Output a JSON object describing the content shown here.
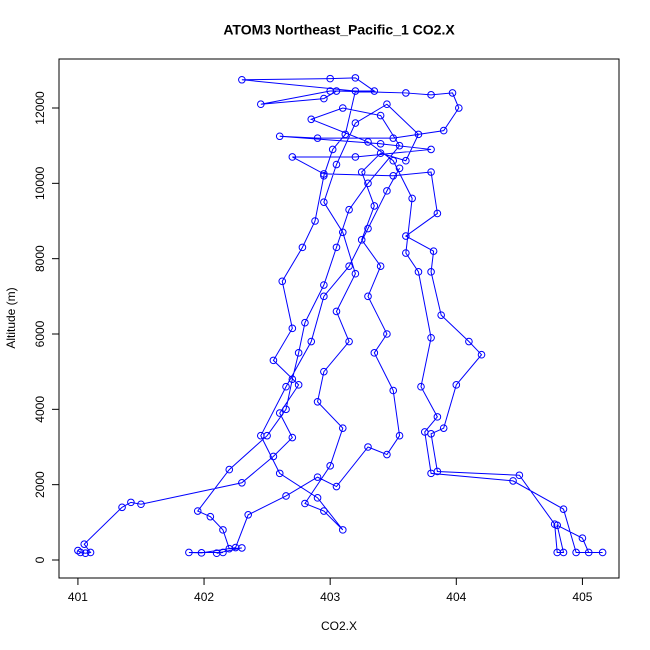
{
  "chart_data": {
    "type": "line",
    "title": "ATOM3 Northeast_Pacific_1 CO2.X",
    "xlabel": "CO2.X",
    "ylabel": "Altitude (m)",
    "xlim": [
      400.85,
      405.29
    ],
    "ylim": [
      -478,
      13301
    ],
    "xticks": [
      401,
      402,
      403,
      404,
      405
    ],
    "yticks": [
      0,
      2000,
      4000,
      6000,
      8000,
      10000,
      12000
    ],
    "marker": "circle",
    "grid": false,
    "series": [
      {
        "color": "#0000ff",
        "x": [
          401.0,
          401.02,
          401.06,
          401.1,
          401.05,
          401.35,
          401.42,
          401.5,
          402.3,
          402.55,
          402.7,
          402.6,
          402.75,
          402.55,
          402.7,
          402.62,
          402.78,
          402.88,
          402.95,
          403.02,
          403.12,
          403.2,
          402.3,
          403.0,
          403.2,
          403.35,
          403.0,
          402.45,
          402.95,
          403.05,
          403.6,
          403.8,
          403.97,
          404.02,
          403.9,
          403.5,
          402.9,
          402.6,
          403.4,
          403.8,
          403.2,
          402.7,
          402.95,
          403.5,
          403.8,
          403.85,
          403.6,
          403.82,
          403.8,
          403.88,
          404.1,
          404.2,
          404.0,
          403.9,
          403.8,
          403.85,
          404.5,
          404.78,
          404.8,
          404.85,
          404.8,
          405.0,
          405.05,
          405.16,
          404.95,
          404.85,
          404.45,
          403.8,
          403.75,
          403.85,
          403.72,
          403.8,
          403.7,
          403.6,
          403.65,
          403.5,
          403.3,
          402.85,
          403.1,
          403.4,
          403.55,
          403.3,
          403.15,
          403.05,
          402.95,
          402.8,
          402.75,
          402.7,
          402.65,
          402.5,
          402.2,
          401.95,
          402.05,
          402.15,
          402.2,
          402.3,
          402.1,
          402.15,
          401.88,
          401.98,
          402.25,
          402.35,
          402.65,
          402.9,
          403.05,
          403.3,
          403.45,
          403.55,
          403.5,
          403.35,
          403.45,
          403.3,
          403.4,
          403.25,
          403.35,
          403.25,
          403.4,
          403.6,
          403.7,
          403.45,
          403.2,
          403.05,
          402.95,
          403.1,
          403.2,
          403.05,
          403.15,
          402.95,
          402.9,
          403.1,
          403.0,
          402.8,
          402.95,
          403.1,
          402.9,
          402.6,
          402.45,
          402.65,
          402.85,
          402.95,
          403.15,
          403.3,
          403.45,
          403.55
        ],
        "values": [
          250,
          200,
          180,
          200,
          420,
          1400,
          1530,
          1480,
          2050,
          2750,
          3250,
          3900,
          4650,
          5300,
          6150,
          7400,
          8300,
          9000,
          10200,
          10900,
          11300,
          12450,
          12750,
          12780,
          12800,
          12450,
          12450,
          12100,
          12250,
          12450,
          12400,
          12350,
          12400,
          12000,
          11400,
          11200,
          11200,
          11250,
          11050,
          10900,
          10700,
          10700,
          10250,
          10200,
          10300,
          9200,
          8600,
          8200,
          7650,
          6500,
          5800,
          5450,
          4650,
          3500,
          3350,
          2350,
          2250,
          950,
          200,
          200,
          920,
          580,
          200,
          200,
          200,
          1350,
          2100,
          2300,
          3400,
          3800,
          4600,
          5900,
          7650,
          8150,
          9600,
          10600,
          11100,
          11700,
          12000,
          11800,
          11000,
          10000,
          9300,
          8300,
          7300,
          6300,
          5500,
          4800,
          4000,
          3300,
          2400,
          1300,
          1150,
          800,
          300,
          320,
          180,
          200,
          200,
          190,
          330,
          1200,
          1700,
          2200,
          1950,
          3000,
          2800,
          3300,
          4500,
          5500,
          6000,
          7000,
          7800,
          8500,
          9400,
          10300,
          10800,
          10600,
          11300,
          12100,
          11600,
          10500,
          9500,
          8700,
          7600,
          6600,
          5800,
          5000,
          4200,
          3500,
          2500,
          1500,
          1300,
          800,
          1650,
          2300,
          3300,
          4600,
          5800,
          7000,
          7800,
          8800,
          9800,
          10400
        ]
      }
    ]
  }
}
